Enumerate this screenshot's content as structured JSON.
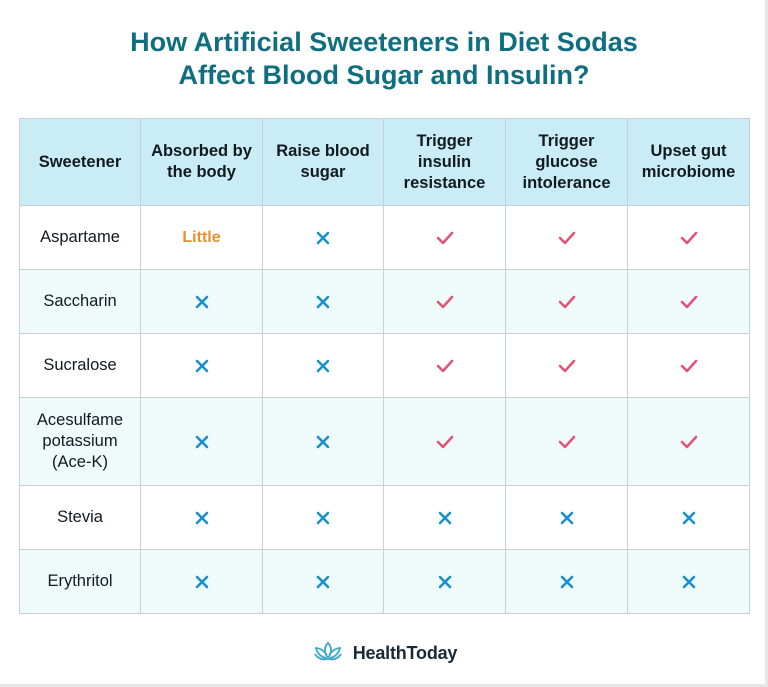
{
  "title": {
    "line1": "How Artificial Sweeteners in Diet Sodas",
    "line2": "Affect Blood Sugar and Insulin?"
  },
  "table": {
    "headers": [
      "Sweetener",
      "Absorbed by the body",
      "Raise blood sugar",
      "Trigger insulin resistance",
      "Trigger glucose intolerance",
      "Upset gut microbiome"
    ],
    "rows": [
      {
        "name": "Aspartame",
        "cells": [
          "Little",
          "cross",
          "check",
          "check",
          "check"
        ]
      },
      {
        "name": "Saccharin",
        "cells": [
          "cross",
          "cross",
          "check",
          "check",
          "check"
        ]
      },
      {
        "name": "Sucralose",
        "cells": [
          "cross",
          "cross",
          "check",
          "check",
          "check"
        ]
      },
      {
        "name": "Acesulfame potassium (Ace-K)",
        "cells": [
          "cross",
          "cross",
          "check",
          "check",
          "check"
        ]
      },
      {
        "name": "Stevia",
        "cells": [
          "cross",
          "cross",
          "cross",
          "cross",
          "cross"
        ]
      },
      {
        "name": "Erythritol",
        "cells": [
          "cross",
          "cross",
          "cross",
          "cross",
          "cross"
        ]
      }
    ]
  },
  "footer": {
    "brand": "HealthToday",
    "logo_icon": "lotus-icon"
  },
  "colors": {
    "title": "#0f6f80",
    "header_bg": "#c9ecf6",
    "check": "#e0557a",
    "cross": "#1a8fd0",
    "little": "#e8902a"
  }
}
